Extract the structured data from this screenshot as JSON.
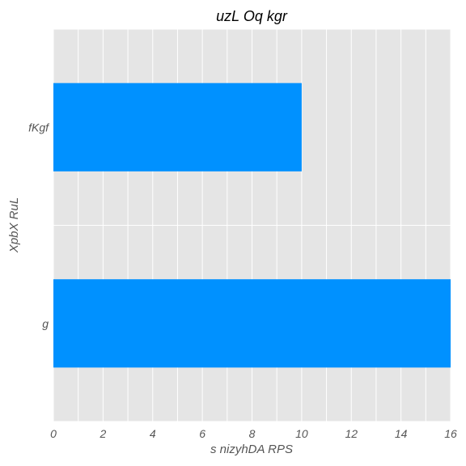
{
  "chart_data": {
    "type": "bar",
    "orientation": "horizontal",
    "title": "uzL Oq kgr",
    "xlabel": "s nizyhDA RPS",
    "ylabel": "XpbX RuL",
    "categories": [
      "g",
      "fKgf"
    ],
    "values": [
      16,
      10
    ],
    "xlim": [
      0,
      16
    ],
    "xticks": [
      0,
      2,
      4,
      6,
      8,
      10,
      12,
      14,
      16
    ],
    "grid": true,
    "legend": "none",
    "colors": {
      "bar": "#0091ff",
      "plot_background": "#e5e5e5",
      "grid": "#ffffff",
      "tick_text": "#555555"
    }
  }
}
